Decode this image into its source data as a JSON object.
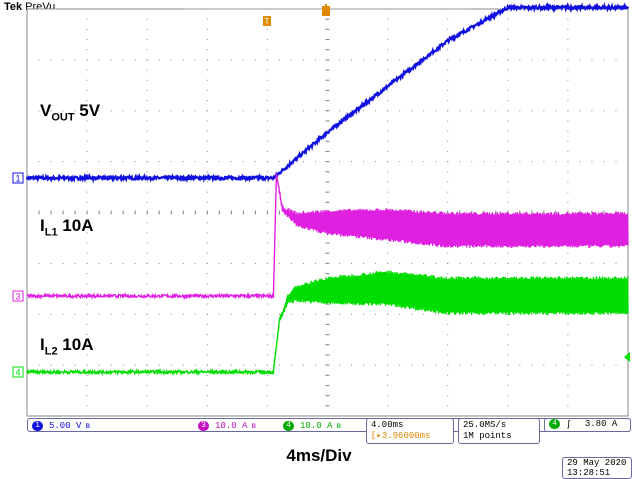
{
  "brand": {
    "name": "Tek",
    "mode": "PreVu"
  },
  "chart_data": {
    "type": "line",
    "timebase": {
      "scale": "4.00ms",
      "label": "4ms/Div",
      "divisions": 10
    },
    "trigger": {
      "delay": "3.96000ms",
      "channel": "4",
      "slope": "rising",
      "level": "3.80 A"
    },
    "acquisition": {
      "sample_rate": "25.0MS/s",
      "record_length": "1M points"
    },
    "channels": [
      {
        "id": "1",
        "color": "#1010e0",
        "scale": "5.00 V",
        "label_main": "V",
        "label_sub": "OUT",
        "label_value": " 5V",
        "x_ms": [
          0,
          4,
          8,
          12,
          16.4,
          20,
          24,
          28,
          32,
          36,
          40
        ],
        "y": [
          0,
          0,
          0,
          0,
          0,
          0.9,
          1.8,
          2.7,
          3.35,
          3.35,
          3.35
        ]
      },
      {
        "id": "3",
        "color": "#e020e0",
        "scale": "10.0 A",
        "label_main": "I",
        "label_sub": "L1",
        "label_value": " 10A",
        "x_ms": [
          0,
          8,
          16.4,
          16.6,
          17.0,
          18,
          20,
          24,
          28,
          32,
          36,
          40
        ],
        "y": [
          0,
          0,
          0,
          2.4,
          1.7,
          1.5,
          1.45,
          1.4,
          1.3,
          1.3,
          1.3,
          1.3
        ],
        "ripple": [
          0,
          0,
          0,
          0,
          0.1,
          0.25,
          0.45,
          0.6,
          0.65,
          0.65,
          0.65,
          0.65
        ]
      },
      {
        "id": "4",
        "color": "#00dd00",
        "scale": "10.0 A",
        "label_main": "I",
        "label_sub": "L2",
        "label_value": " 10A",
        "x_ms": [
          0,
          8,
          16.4,
          16.8,
          17.4,
          18,
          20,
          24,
          28,
          32,
          36,
          40
        ],
        "y": [
          0,
          0,
          0,
          1.0,
          1.45,
          1.55,
          1.6,
          1.65,
          1.5,
          1.5,
          1.5,
          1.5
        ],
        "ripple": [
          0,
          0,
          0,
          0.05,
          0.15,
          0.3,
          0.5,
          0.65,
          0.7,
          0.7,
          0.7,
          0.7
        ]
      }
    ]
  },
  "footer": {
    "date": "29 May 2020",
    "time": "13:28:51"
  }
}
